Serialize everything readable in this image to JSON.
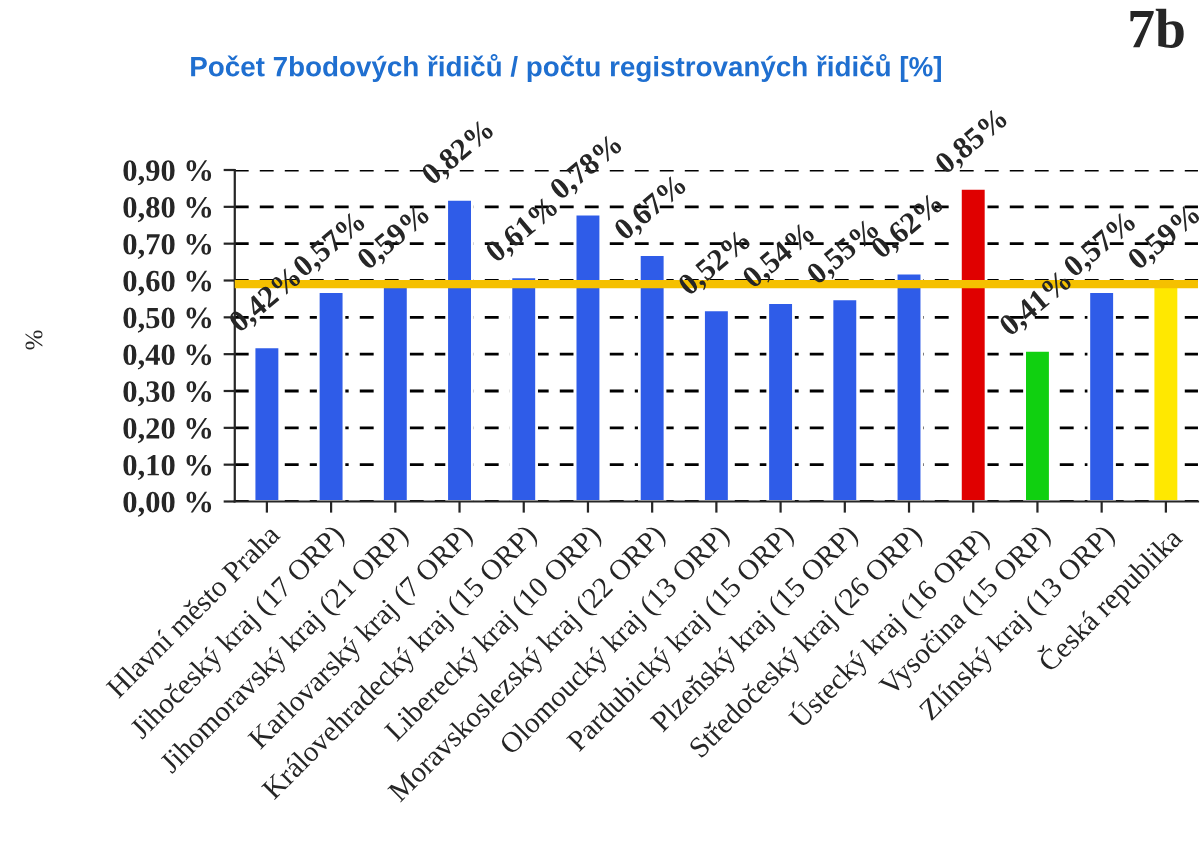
{
  "chart_data": {
    "type": "bar",
    "title": "Počet 7bodových řidičů / počtu registrovaných řidičů [%]",
    "ylabel": "%",
    "annotations": [
      "7b"
    ],
    "categories": [
      "Hlavní město Praha",
      "Jihočeský kraj (17 ORP)",
      "Jihomoravský kraj (21 ORP)",
      "Karlovarský kraj (7 ORP)",
      "Královehradecký kraj (15 ORP)",
      "Liberecký kraj (10 ORP)",
      "Moravskoslezský kraj (22 ORP)",
      "Olomoucký kraj (13 ORP)",
      "Pardubický kraj (15 ORP)",
      "Plzeňský kraj (15 ORP)",
      "Středočeský kraj (26 ORP)",
      "Ústecký kraj (16 ORP)",
      "Vysočina (15 ORP)",
      "Zlínský kraj (13 ORP)",
      "Česká republika"
    ],
    "values": [
      0.42,
      0.57,
      0.59,
      0.82,
      0.61,
      0.78,
      0.67,
      0.52,
      0.54,
      0.55,
      0.62,
      0.85,
      0.41,
      0.57,
      0.59
    ],
    "value_labels": [
      "0,42%",
      "0,57%",
      "0,59%",
      "0,82%",
      "0,61%",
      "0,78%",
      "0,67%",
      "0,52%",
      "0,54%",
      "0,55%",
      "0,62%",
      "0,85%",
      "0,41%",
      "0,57%",
      "0,59%"
    ],
    "colors": [
      "#2f5ce8",
      "#2f5ce8",
      "#2f5ce8",
      "#2f5ce8",
      "#2f5ce8",
      "#2f5ce8",
      "#2f5ce8",
      "#2f5ce8",
      "#2f5ce8",
      "#2f5ce8",
      "#2f5ce8",
      "#e00000",
      "#10d010",
      "#2f5ce8",
      "#ffe800"
    ],
    "ylim": [
      0,
      0.9
    ],
    "yticks": [
      {
        "value": 0,
        "label": "0,00 %"
      },
      {
        "value": 0.1,
        "label": "0,10 %"
      },
      {
        "value": 0.2,
        "label": "0,20 %"
      },
      {
        "value": 0.3,
        "label": "0,30 %"
      },
      {
        "value": 0.4,
        "label": "0,40 %"
      },
      {
        "value": 0.5,
        "label": "0,50 %"
      },
      {
        "value": 0.6,
        "label": "0,60 %"
      },
      {
        "value": 0.7,
        "label": "0,70 %"
      },
      {
        "value": 0.8,
        "label": "0,80 %"
      },
      {
        "value": 0.9,
        "label": "0,90 %"
      }
    ],
    "ref_lines": [
      {
        "axis": "y",
        "value": 0.59,
        "color": "#f5c000"
      }
    ],
    "grid": "y"
  }
}
